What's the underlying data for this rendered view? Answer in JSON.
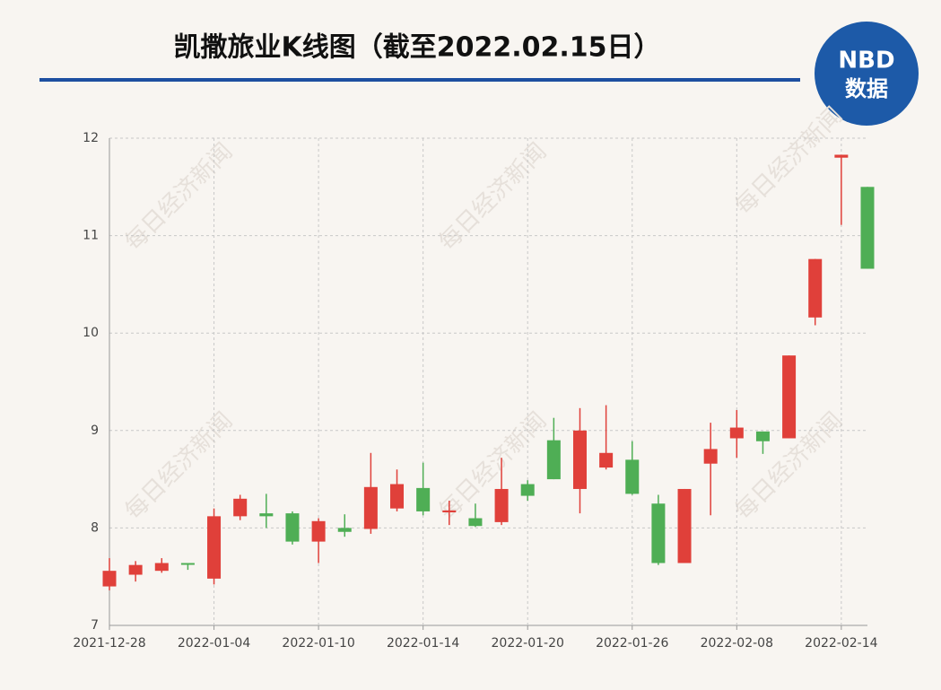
{
  "chart_data": {
    "type": "candlestick",
    "title": "凯撒旅业K线图（截至2022.02.15日）",
    "logo": [
      "NBD",
      "数据"
    ],
    "watermark": "每日经济新闻",
    "categories": [
      "2021-12-28",
      null,
      null,
      null,
      "2022-01-04",
      null,
      null,
      null,
      "2022-01-10",
      null,
      null,
      null,
      "2022-01-14",
      null,
      null,
      null,
      "2022-01-20",
      null,
      null,
      null,
      "2022-01-26",
      null,
      null,
      null,
      "2022-02-08",
      null,
      null,
      null,
      "2022-02-14",
      null
    ],
    "open": [
      7.4,
      7.52,
      7.56,
      7.64,
      7.48,
      8.12,
      8.15,
      8.15,
      7.86,
      8.0,
      7.99,
      8.2,
      8.41,
      8.16,
      8.1,
      8.06,
      8.45,
      8.9,
      8.4,
      8.62,
      8.7,
      8.25,
      7.64,
      8.66,
      8.92,
      8.99,
      8.92,
      10.16,
      11.8,
      11.5
    ],
    "high": [
      7.69,
      7.66,
      7.69,
      7.64,
      8.2,
      8.34,
      8.35,
      8.17,
      8.1,
      8.14,
      8.77,
      8.6,
      8.67,
      8.28,
      8.25,
      8.72,
      8.49,
      9.13,
      9.23,
      9.26,
      8.89,
      8.34,
      8.4,
      9.08,
      9.21,
      8.99,
      9.77,
      10.76,
      11.83,
      11.5
    ],
    "low": [
      7.36,
      7.45,
      7.54,
      7.57,
      7.42,
      8.08,
      8.0,
      7.83,
      7.64,
      7.91,
      7.94,
      8.17,
      8.13,
      8.03,
      8.01,
      8.03,
      8.28,
      8.5,
      8.15,
      8.6,
      8.34,
      7.62,
      7.64,
      8.13,
      8.72,
      8.76,
      8.92,
      10.08,
      11.11,
      10.66
    ],
    "close": [
      7.56,
      7.62,
      7.64,
      7.63,
      8.12,
      8.3,
      8.12,
      7.86,
      8.07,
      7.96,
      8.42,
      8.45,
      8.17,
      8.18,
      8.02,
      8.4,
      8.33,
      8.5,
      9.0,
      8.77,
      8.35,
      7.64,
      8.4,
      8.81,
      9.03,
      8.89,
      9.77,
      10.76,
      11.83,
      10.66
    ],
    "up_color": "#e0403a",
    "down_color": "#4fae55",
    "ylim": [
      7,
      12
    ],
    "yticks": [
      7,
      8,
      9,
      10,
      11,
      12
    ],
    "grid": true
  }
}
